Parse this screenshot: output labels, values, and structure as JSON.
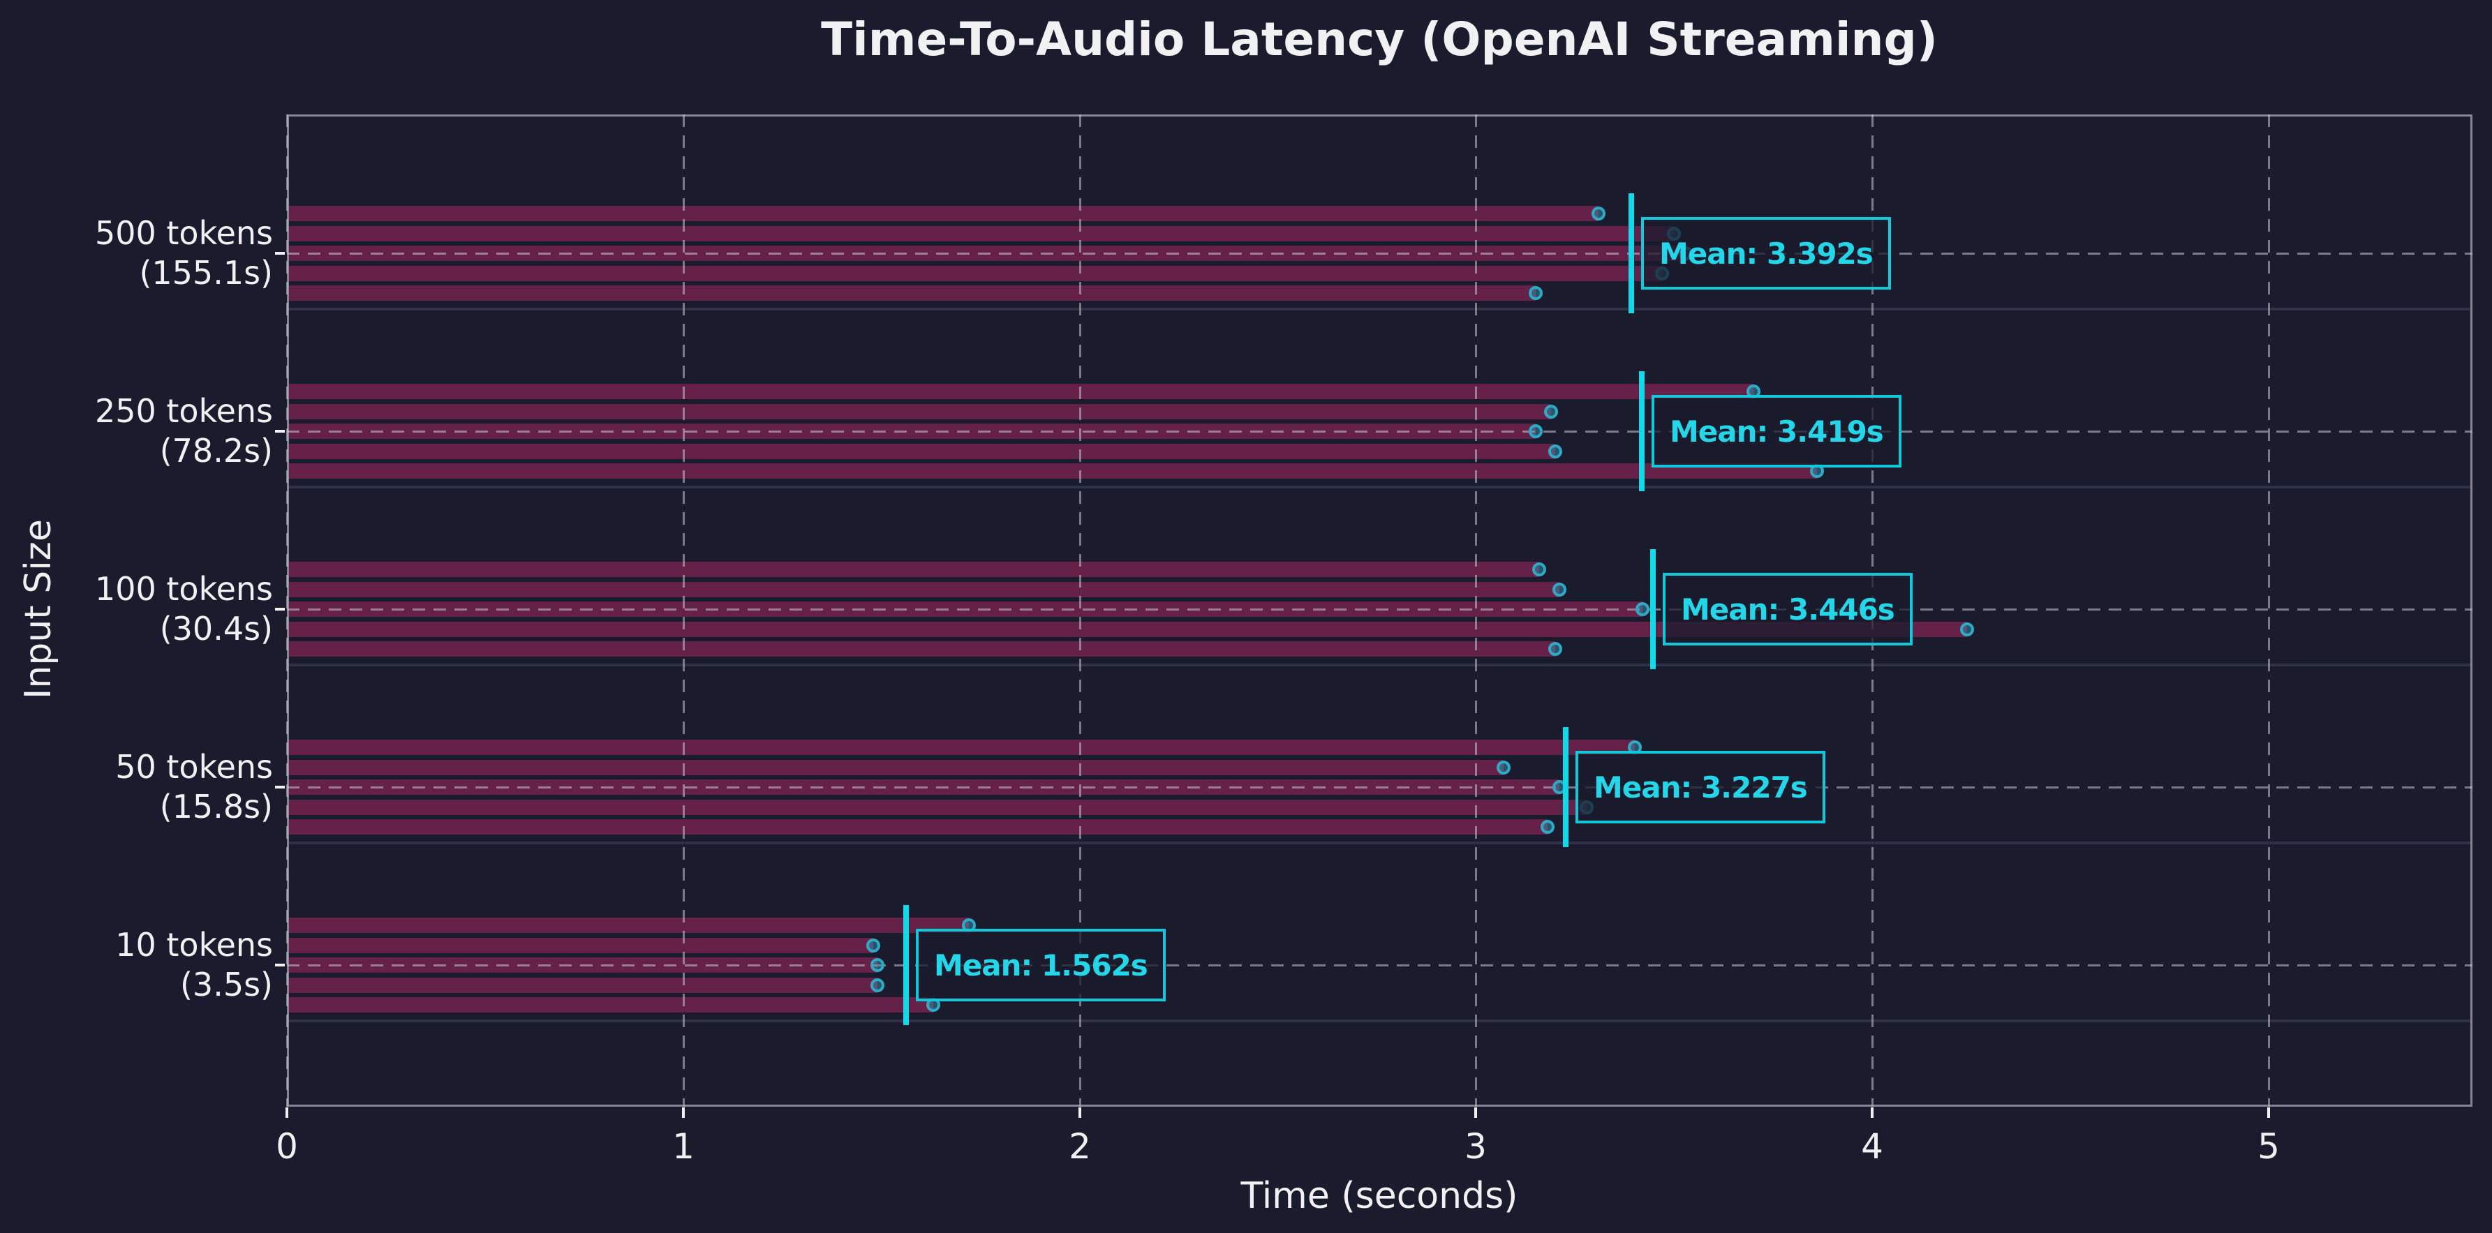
{
  "chart_data": {
    "type": "bar",
    "orientation": "horizontal",
    "title": "Time-To-Audio Latency (OpenAI Streaming)",
    "xlabel": "Time (seconds)",
    "ylabel": "Input Size",
    "xlim": [
      0,
      5.51
    ],
    "x_ticks": [
      "0",
      "1",
      "2",
      "3",
      "4",
      "5"
    ],
    "grid": "dashed",
    "legend": "none",
    "groups": [
      {
        "label_line1": "500 tokens",
        "label_line2": "(155.1s)",
        "runs": [
          3.31,
          3.5,
          3.53,
          3.47,
          3.15
        ],
        "mean": 3.392,
        "mean_label": "Mean: 3.392s"
      },
      {
        "label_line1": "250 tokens",
        "label_line2": "(78.2s)",
        "runs": [
          3.7,
          3.19,
          3.15,
          3.2,
          3.86
        ],
        "mean": 3.419,
        "mean_label": "Mean: 3.419s"
      },
      {
        "label_line1": "100 tokens",
        "label_line2": "(30.4s)",
        "runs": [
          3.16,
          3.21,
          3.42,
          4.24,
          3.2
        ],
        "mean": 3.446,
        "mean_label": "Mean: 3.446s"
      },
      {
        "label_line1": "50 tokens",
        "label_line2": "(15.8s)",
        "runs": [
          3.4,
          3.07,
          3.21,
          3.28,
          3.18
        ],
        "mean": 3.227,
        "mean_label": "Mean: 3.227s"
      },
      {
        "label_line1": "10 tokens",
        "label_line2": "(3.5s)",
        "runs": [
          1.72,
          1.48,
          1.49,
          1.49,
          1.63
        ],
        "mean": 1.562,
        "mean_label": "Mean: 1.562s"
      }
    ],
    "colors": {
      "background": "#1a1b2d",
      "bar": "#652147",
      "grid": "rgba(201,198,212,0.55)",
      "spine": "#858591",
      "separator": "#2e3148",
      "mean_line": "#12d9e8",
      "mean_box_border": "#12c9db",
      "mean_text": "#25d6e8",
      "mean_box_fill": "rgba(26,28,46,0.75)",
      "dot_edge": "#2fa9c4",
      "dot_fill": "rgba(47,169,196,0.42)",
      "text": "#f1f1f3"
    }
  }
}
